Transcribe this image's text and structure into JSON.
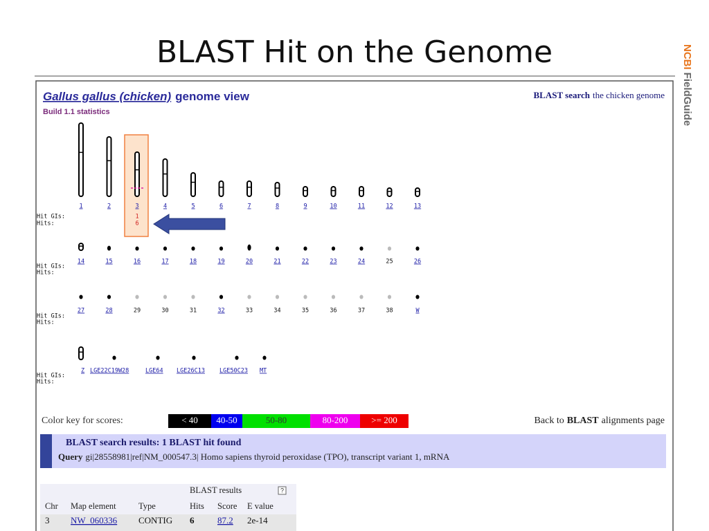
{
  "slide": {
    "title": "BLAST Hit on the Genome",
    "side_logo": {
      "brand": "NCBI",
      "product": "FieldGuide"
    }
  },
  "genome_view": {
    "organism": "Gallus gallus (chicken)",
    "title_suffix": "genome view",
    "build": "Build 1.1 statistics",
    "search_link": {
      "bold": "BLAST search",
      "text": "the chicken genome"
    },
    "hit_gis_label": "Hit GIs:",
    "hits_label": "Hits:",
    "rows": [
      {
        "chromosomes": [
          {
            "label": "1",
            "linked": true
          },
          {
            "label": "2",
            "linked": true
          },
          {
            "label": "3",
            "linked": true,
            "hit_gis": "1",
            "hits": "6"
          },
          {
            "label": "4",
            "linked": true
          },
          {
            "label": "5",
            "linked": true
          },
          {
            "label": "6",
            "linked": true
          },
          {
            "label": "7",
            "linked": true
          },
          {
            "label": "8",
            "linked": true
          },
          {
            "label": "9",
            "linked": true
          },
          {
            "label": "10",
            "linked": true
          },
          {
            "label": "11",
            "linked": true
          },
          {
            "label": "12",
            "linked": true
          },
          {
            "label": "13",
            "linked": true
          }
        ]
      },
      {
        "chromosomes": [
          {
            "label": "14",
            "linked": true
          },
          {
            "label": "15",
            "linked": true
          },
          {
            "label": "16",
            "linked": true
          },
          {
            "label": "17",
            "linked": true
          },
          {
            "label": "18",
            "linked": true
          },
          {
            "label": "19",
            "linked": true
          },
          {
            "label": "20",
            "linked": true
          },
          {
            "label": "21",
            "linked": true
          },
          {
            "label": "22",
            "linked": true
          },
          {
            "label": "23",
            "linked": true
          },
          {
            "label": "24",
            "linked": true
          },
          {
            "label": "25",
            "linked": false
          },
          {
            "label": "26",
            "linked": true
          }
        ]
      },
      {
        "chromosomes": [
          {
            "label": "27",
            "linked": true
          },
          {
            "label": "28",
            "linked": true
          },
          {
            "label": "29",
            "linked": false
          },
          {
            "label": "30",
            "linked": false
          },
          {
            "label": "31",
            "linked": false
          },
          {
            "label": "32",
            "linked": true
          },
          {
            "label": "33",
            "linked": false
          },
          {
            "label": "34",
            "linked": false
          },
          {
            "label": "35",
            "linked": false
          },
          {
            "label": "36",
            "linked": false
          },
          {
            "label": "37",
            "linked": false
          },
          {
            "label": "38",
            "linked": false
          },
          {
            "label": "W",
            "linked": true
          }
        ]
      },
      {
        "chromosomes": [
          {
            "label": "Z",
            "linked": true
          },
          {
            "label": "LGE22C19W28",
            "linked": true
          },
          {
            "label": "LGE64",
            "linked": true
          },
          {
            "label": "LGE26C13",
            "linked": true
          },
          {
            "label": "LGE50C23",
            "linked": true
          },
          {
            "label": "MT",
            "linked": true
          }
        ]
      }
    ]
  },
  "color_key": {
    "label": "Color key for scores:",
    "items": [
      {
        "label": "< 40",
        "color": "#000000"
      },
      {
        "label": "40-50",
        "color": "#0000ee"
      },
      {
        "label": "50-80",
        "color": "#00e000"
      },
      {
        "label": "80-200",
        "color": "#ee00ee"
      },
      {
        "label": ">= 200",
        "color": "#ee0000"
      }
    ]
  },
  "back_link": {
    "text": "Back to",
    "bold": "BLAST",
    "suffix": "alignments page"
  },
  "results": {
    "heading": "BLAST search results: 1 BLAST hit found",
    "query_label": "Query",
    "query": "gi|28558981|ref|NM_000547.3| Homo sapiens thyroid peroxidase (TPO), transcript variant 1, mRNA"
  },
  "table": {
    "group_header": "BLAST results",
    "help": "?",
    "columns": [
      "Chr",
      "Map element",
      "Type",
      "Hits",
      "Score",
      "E value"
    ],
    "rows": [
      [
        "3",
        "NW_060336",
        "CONTIG",
        "6",
        "87.2",
        "2e-14"
      ]
    ]
  }
}
